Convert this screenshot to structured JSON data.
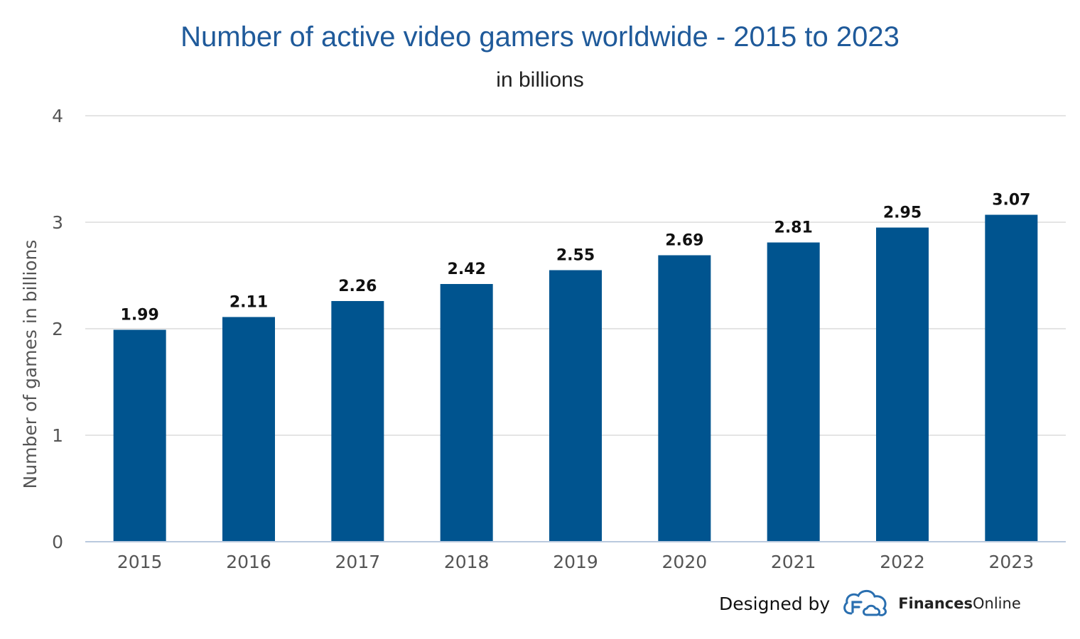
{
  "header": {
    "title": "Number of active video gamers worldwide - 2015 to 2023",
    "subtitle": "in billions"
  },
  "credit": {
    "prefix": "Designed by",
    "brand_bold": "Finances",
    "brand_light": "Online",
    "logo_icon": "cloud-f-logo-icon"
  },
  "colors": {
    "bar": "#00548f",
    "title": "#1f5a9a",
    "grid": "#dcdcdc"
  },
  "chart_data": {
    "type": "bar",
    "title": "Number of active video gamers worldwide - 2015 to 2023",
    "subtitle": "in billions",
    "xlabel": "",
    "ylabel": "Number of games in billions",
    "categories": [
      "2015",
      "2016",
      "2017",
      "2018",
      "2019",
      "2020",
      "2021",
      "2022",
      "2023"
    ],
    "values": [
      1.99,
      2.11,
      2.26,
      2.42,
      2.55,
      2.69,
      2.81,
      2.95,
      3.07
    ],
    "data_labels": [
      "1.99",
      "2.11",
      "2.26",
      "2.42",
      "2.55",
      "2.69",
      "2.81",
      "2.95",
      "3.07"
    ],
    "ylim": [
      0,
      4
    ],
    "yticks": [
      "0",
      "1",
      "2",
      "3",
      "4"
    ],
    "grid": true,
    "legend": "none"
  }
}
